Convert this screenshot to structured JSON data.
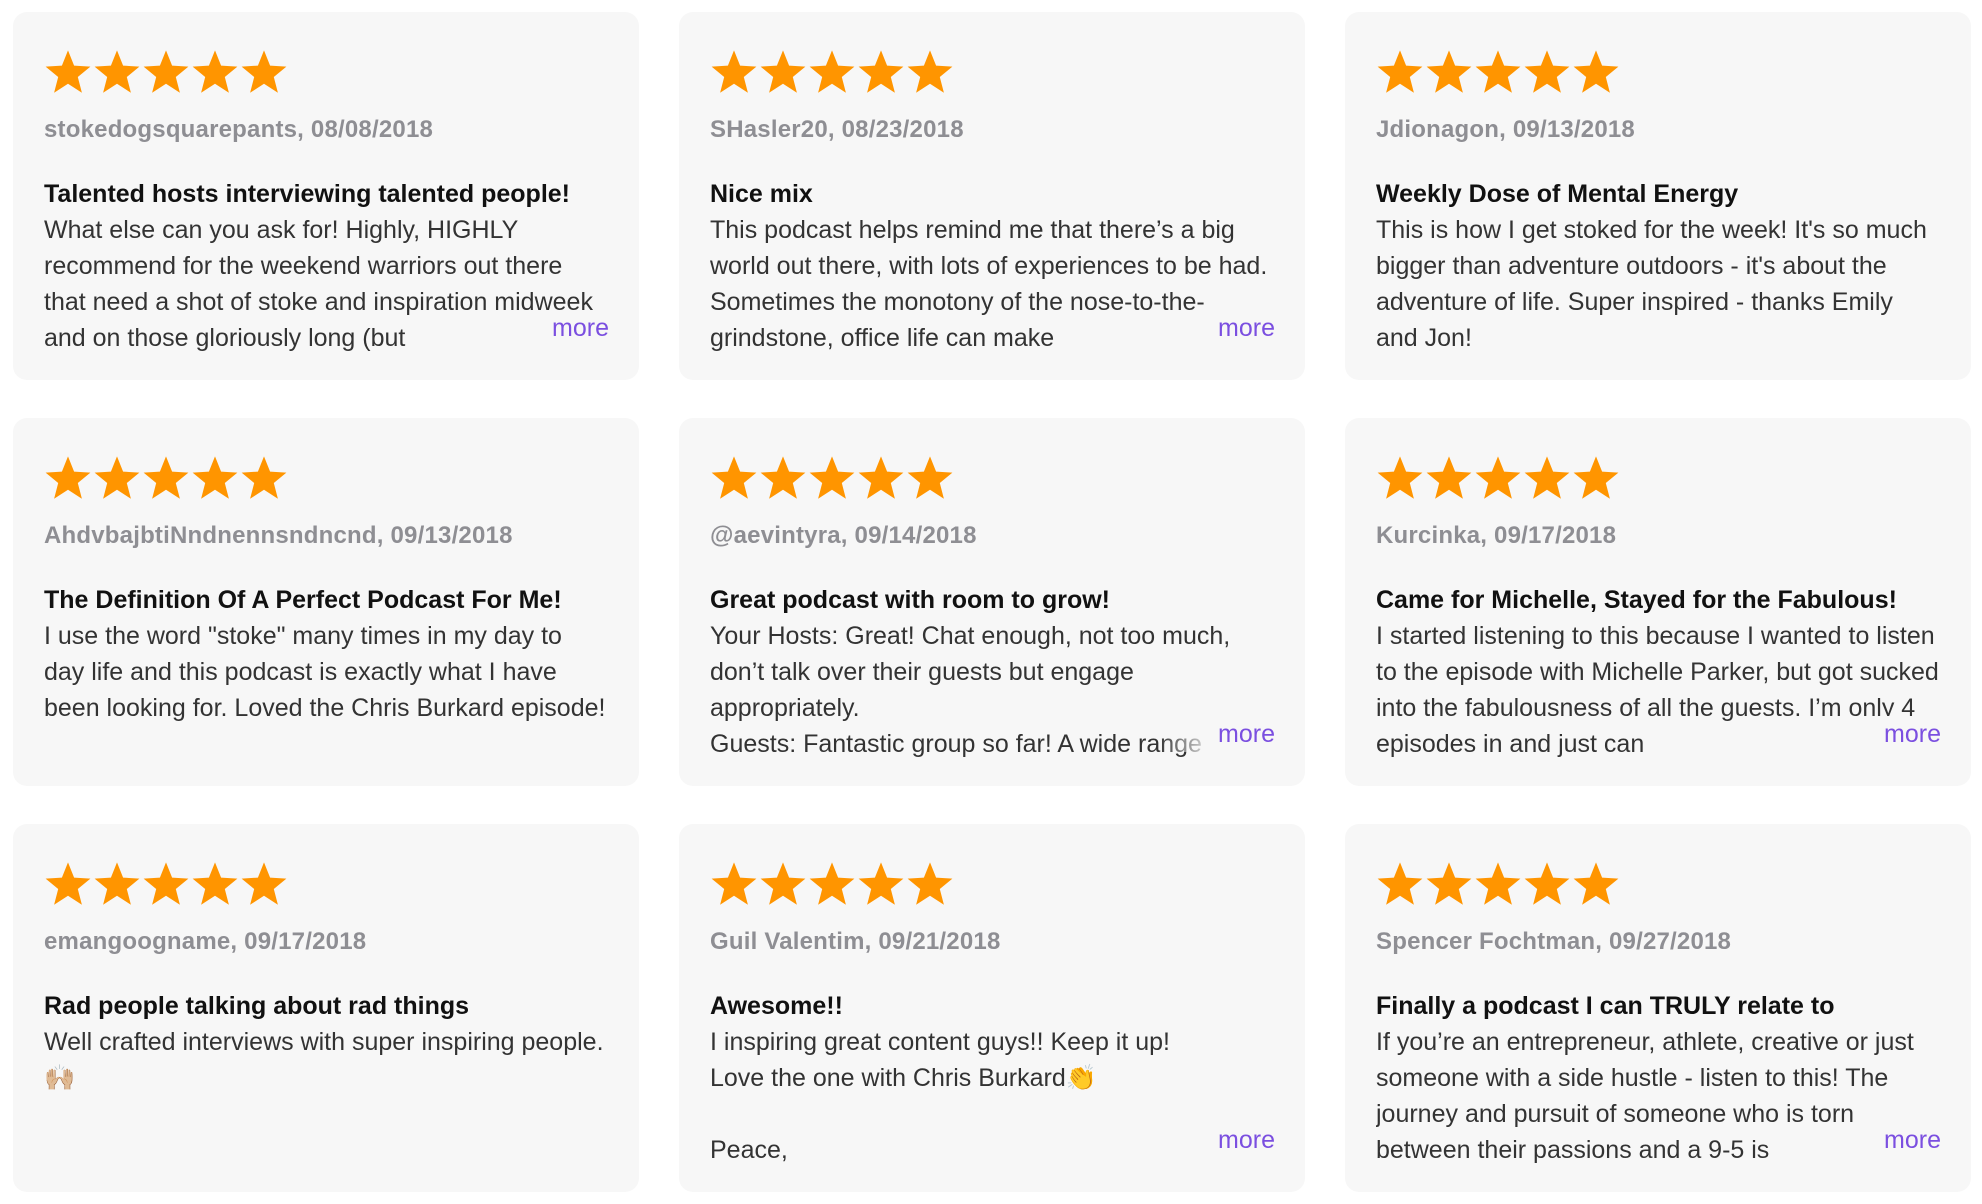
{
  "accent_color": "#7b4fe0",
  "star_color": "#ff9500",
  "more_label": "more",
  "reviews": [
    {
      "rating": 5,
      "author": "stokedogsquarepants",
      "date": "08/08/2018",
      "meta": "stokedogsquarepants, 08/08/2018",
      "title": "Talented hosts interviewing talented people!",
      "body": "What else can you ask for! Highly, HIGHLY recommend for the weekend warriors out there that need a shot of stoke and inspiration midweek and on those gloriously long (but",
      "truncated": true
    },
    {
      "rating": 5,
      "author": "SHasler20",
      "date": "08/23/2018",
      "meta": "SHasler20, 08/23/2018",
      "title": "Nice mix",
      "body": "This podcast helps remind me that there’s a big world out there, with lots of experiences to be had. Sometimes the monotony of the nose-to-the-grindstone, office life can make",
      "truncated": true
    },
    {
      "rating": 5,
      "author": "Jdionagon",
      "date": "09/13/2018",
      "meta": "Jdionagon, 09/13/2018",
      "title": "Weekly Dose of Mental Energy",
      "body": "This is how I get stoked for the week! It's so much bigger than adventure outdoors - it's about the adventure of life. Super inspired - thanks Emily and Jon!",
      "truncated": false
    },
    {
      "rating": 5,
      "author": "AhdvbajbtiNndnennsndncnd",
      "date": "09/13/2018",
      "meta": "AhdvbajbtiNndnennsndncnd, 09/13/2018",
      "title": "The Definition Of A Perfect Podcast For Me!",
      "body": "I use the word \"stoke\" many times in my day to day life and this podcast is exactly what I have been looking for. Loved the Chris Burkard episode!",
      "truncated": false
    },
    {
      "rating": 5,
      "author": "@aevintyra",
      "date": "09/14/2018",
      "meta": "@aevintyra, 09/14/2018",
      "title": "Great podcast with room to grow!",
      "body": "Your Hosts: Great! Chat enough, not too much, don’t talk over their guests but engage appropriately.\nGuests: Fantastic group so far! A wide range",
      "truncated": true
    },
    {
      "rating": 5,
      "author": "Kurcinka",
      "date": "09/17/2018",
      "meta": "Kurcinka, 09/17/2018",
      "title": "Came for Michelle, Stayed for the Fabulous!",
      "body": "I started listening to this because I wanted to listen to the episode with Michelle Parker, but got sucked into the fabulousness of all the guests. I’m only 4 episodes in and just can",
      "truncated": true
    },
    {
      "rating": 5,
      "author": "emangoogname",
      "date": "09/17/2018",
      "meta": "emangoogname, 09/17/2018",
      "title": "Rad people talking about rad things",
      "body": "Well crafted interviews with super inspiring people. 🙌🏼",
      "truncated": false
    },
    {
      "rating": 5,
      "author": "Guil Valentim",
      "date": "09/21/2018",
      "meta": "Guil Valentim, 09/21/2018",
      "title": "Awesome!!",
      "body": "I inspiring great content guys!! Keep it up!\nLove the one with Chris Burkard👏\n\nPeace,",
      "truncated": true
    },
    {
      "rating": 5,
      "author": "Spencer Fochtman",
      "date": "09/27/2018",
      "meta": "Spencer Fochtman, 09/27/2018",
      "title": "Finally a podcast I can TRULY relate to",
      "body": "If you’re an entrepreneur, athlete, creative or just someone with a side hustle - listen to this! The journey and pursuit of someone who is torn between their passions and a 9-5 is",
      "truncated": true
    }
  ]
}
